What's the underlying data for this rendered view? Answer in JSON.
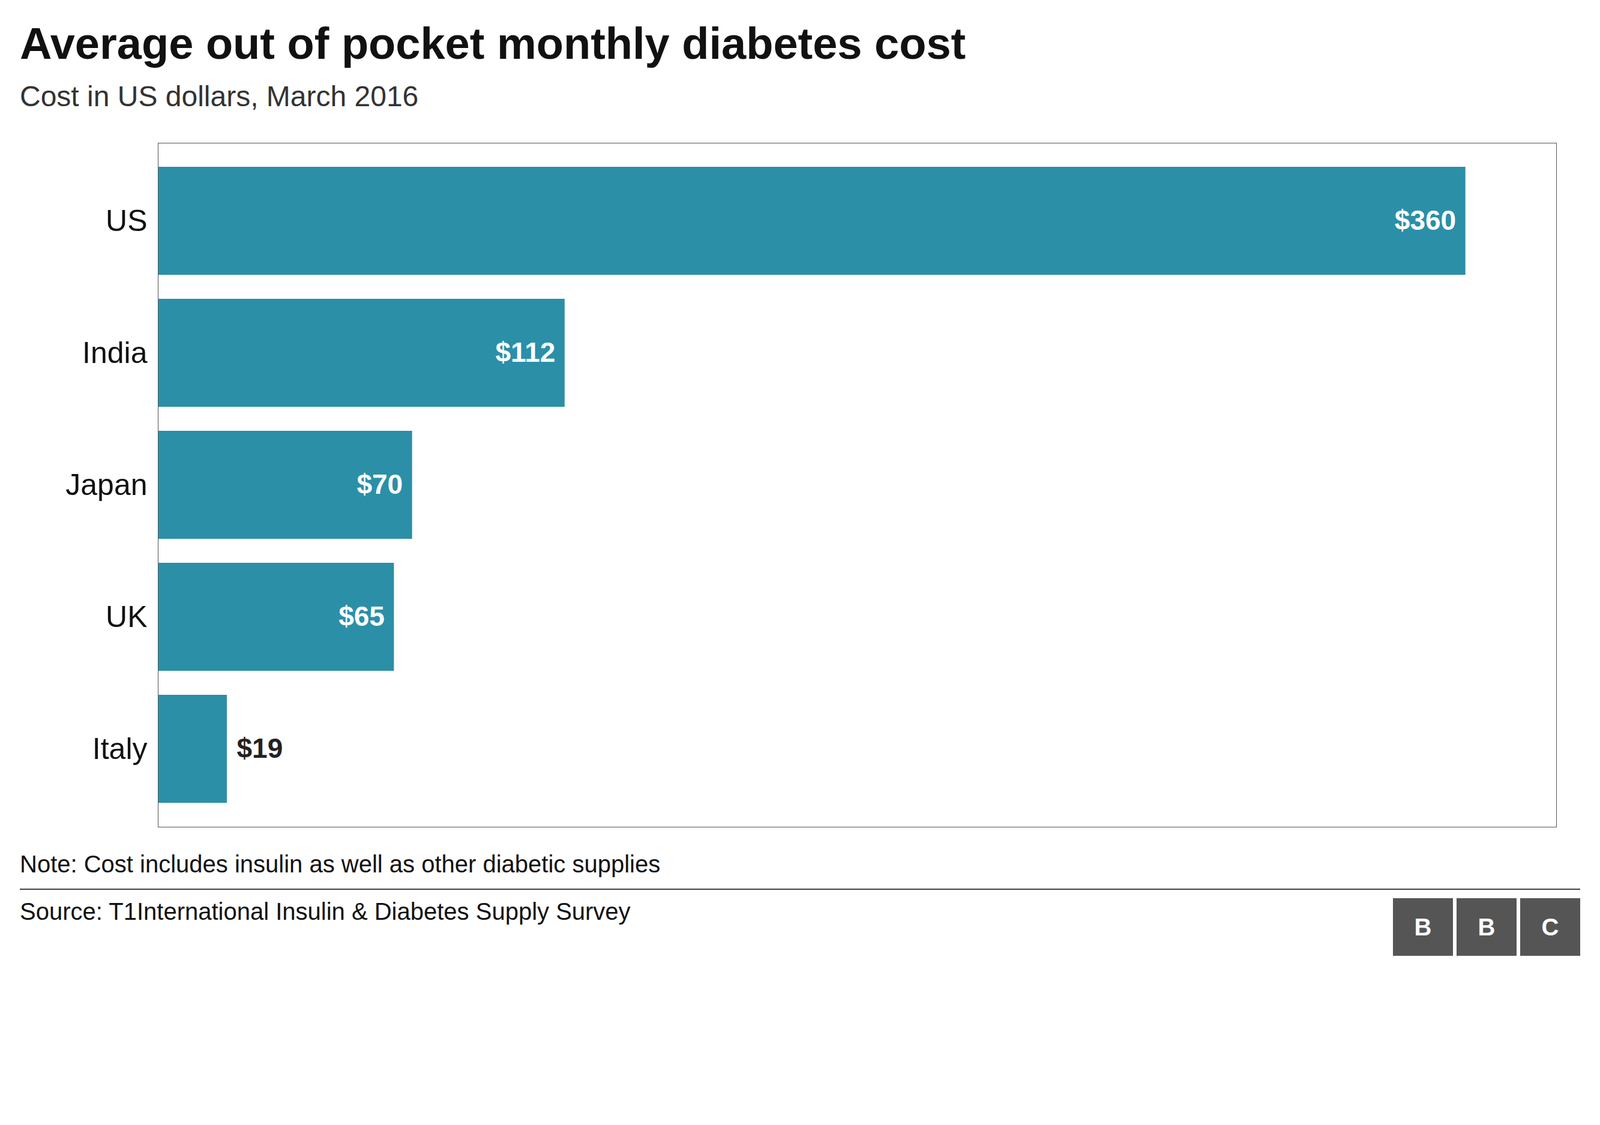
{
  "chart_data": {
    "type": "bar",
    "orientation": "horizontal",
    "title": "Average out of pocket monthly diabetes cost",
    "subtitle": "Cost in US dollars, March 2016",
    "note": "Note: Cost includes insulin as well as other diabetic supplies",
    "source": "Source: T1International Insulin & Diabetes Supply Survey",
    "annotations": [
      "BBC"
    ],
    "categories": [
      "US",
      "India",
      "Japan",
      "UK",
      "Italy"
    ],
    "values": [
      360,
      112,
      70,
      65,
      19
    ],
    "value_labels": [
      "$360",
      "$112",
      "$70",
      "$65",
      "$19"
    ],
    "color": "#2b8fa8",
    "xlim": [
      0,
      385
    ],
    "data_labels": true,
    "tick_labels": "y",
    "grid": false
  }
}
